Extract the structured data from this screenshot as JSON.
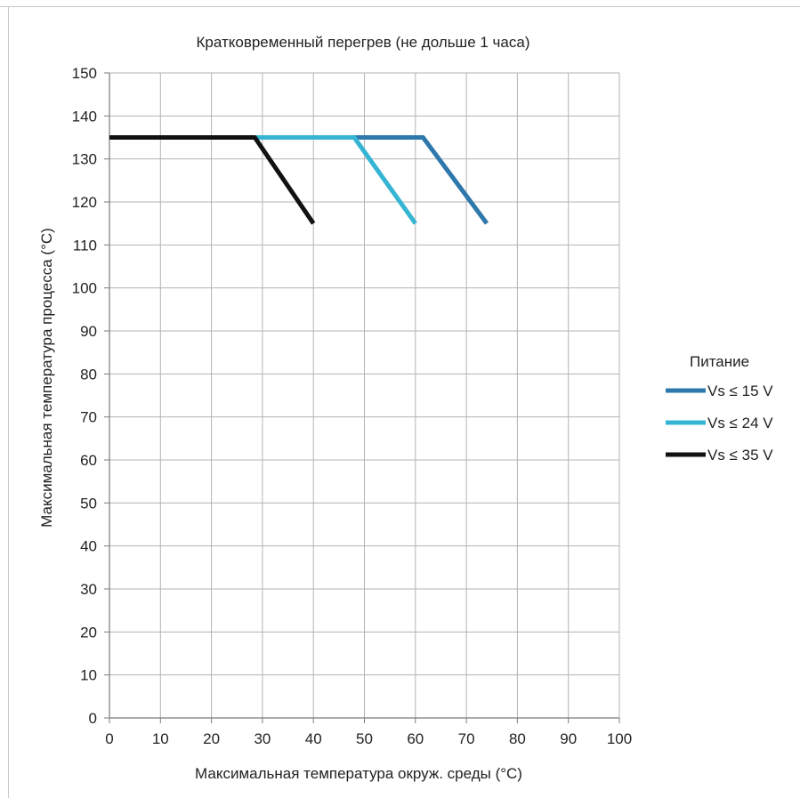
{
  "chart_data": {
    "type": "line",
    "title": "Кратковременный перегрев (не дольше 1 часа)",
    "xlabel": "Максимальная температура окруж. среды (°C)",
    "ylabel": "Максимальная температура процесса  (°C)",
    "xlim": [
      0,
      100
    ],
    "ylim": [
      0,
      150
    ],
    "xticks": [
      0,
      10,
      20,
      30,
      40,
      50,
      60,
      70,
      80,
      90,
      100
    ],
    "yticks": [
      0,
      10,
      20,
      30,
      40,
      50,
      60,
      70,
      80,
      90,
      100,
      110,
      120,
      130,
      140,
      150
    ],
    "grid": true,
    "legend": {
      "title": "Питание",
      "position": "right"
    },
    "series": [
      {
        "name": "Vs ≤ 15 V",
        "color": "#2e78ac",
        "x": [
          48,
          61.5,
          74
        ],
        "y": [
          135,
          135,
          115
        ]
      },
      {
        "name": "Vs ≤ 24 V",
        "color": "#35b5d3",
        "x": [
          28,
          48,
          60
        ],
        "y": [
          135,
          135,
          115
        ]
      },
      {
        "name": "Vs ≤ 35 V",
        "color": "#111111",
        "x": [
          0,
          28.5,
          40
        ],
        "y": [
          135,
          135,
          115
        ]
      }
    ]
  }
}
